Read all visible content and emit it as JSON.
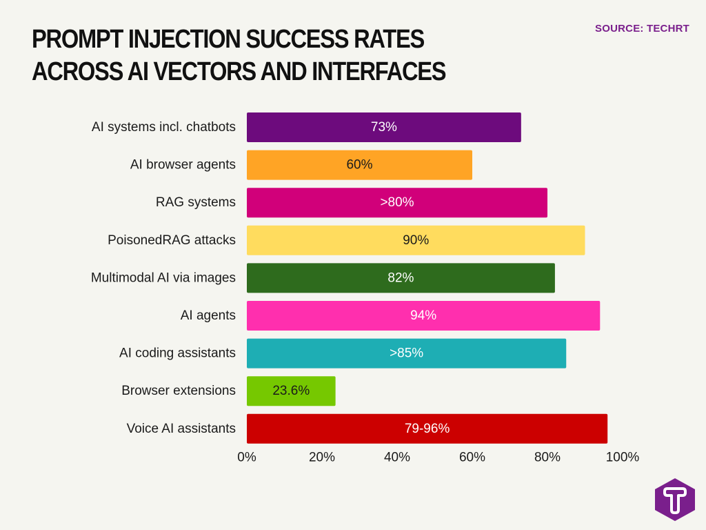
{
  "header": {
    "title": "PROMPT INJECTION SUCCESS RATES ACROSS AI VECTORS AND INTERFACES",
    "source": "SOURCE: TECHRT"
  },
  "logo": {
    "icon": "t-hexagon-logo-icon",
    "color": "#7a1f8c"
  },
  "chart_data": {
    "type": "bar",
    "orientation": "horizontal",
    "title": "PROMPT INJECTION SUCCESS RATES ACROSS AI VECTORS AND INTERFACES",
    "xlabel": "",
    "ylabel": "",
    "xlim": [
      0,
      100
    ],
    "grid": false,
    "x_ticks": [
      0,
      20,
      40,
      60,
      80,
      100
    ],
    "x_tick_labels": [
      "0%",
      "20%",
      "40%",
      "60%",
      "80%",
      "100%"
    ],
    "categories": [
      "AI systems incl. chatbots",
      "AI browser agents",
      "RAG systems",
      "PoisonedRAG attacks",
      "Multimodal AI via images",
      "AI agents",
      "AI coding assistants",
      "Browser extensions",
      "Voice AI assistants"
    ],
    "values": [
      73,
      60,
      80,
      90,
      82,
      94,
      85,
      23.6,
      96
    ],
    "value_labels": [
      "73%",
      "60%",
      ">80%",
      "90%",
      "82%",
      "94%",
      ">85%",
      "23.6%",
      "79-96%"
    ],
    "colors": [
      "#6d0b7d",
      "#ffa425",
      "#d1007a",
      "#ffdc5e",
      "#2e6b1d",
      "#ff2fae",
      "#1eaeb4",
      "#76c800",
      "#cc0000"
    ],
    "label_colors": [
      "#ffffff",
      "#1a1a1a",
      "#ffffff",
      "#1a1a1a",
      "#ffffff",
      "#ffffff",
      "#ffffff",
      "#1a1a1a",
      "#ffffff"
    ]
  }
}
